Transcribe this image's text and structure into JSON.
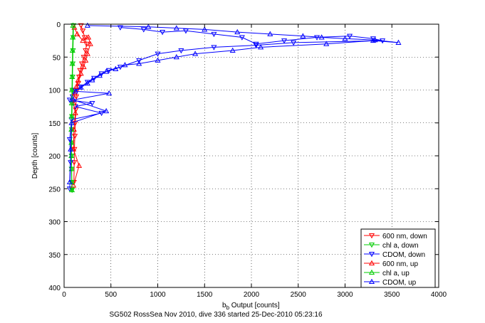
{
  "chart_data": {
    "type": "line",
    "title": "",
    "xlabel_main": "b",
    "xlabel_sub": "b",
    "xlabel_rest": " Output [counts]",
    "ylabel": "Depth [counts]",
    "caption": "SG502 RossSea Nov 2010, dive 336 started 25-Dec-2010 05:23:16",
    "xlim": [
      0,
      4000
    ],
    "ylim": [
      0,
      400
    ],
    "y_reversed": true,
    "grid": true,
    "legend_position": "bottom-right",
    "xticks": [
      0,
      500,
      1000,
      1500,
      2000,
      2500,
      3000,
      3500,
      4000
    ],
    "yticks": [
      0,
      50,
      100,
      150,
      200,
      250,
      300,
      350,
      400
    ],
    "series": [
      {
        "name": "600 nm, down",
        "color": "#ff0000",
        "marker": "triangle-down",
        "x": [
          180,
          200,
          220,
          240,
          230,
          210,
          190,
          170,
          160,
          150,
          140,
          130,
          125,
          120,
          115,
          110,
          108,
          105
        ],
        "y": [
          2,
          10,
          20,
          30,
          40,
          50,
          60,
          70,
          80,
          90,
          100,
          110,
          130,
          150,
          170,
          190,
          210,
          240
        ]
      },
      {
        "name": "chl a, down",
        "color": "#00cc00",
        "marker": "triangle-down",
        "x": [
          100,
          98,
          95,
          92,
          90,
          88,
          86,
          84,
          82,
          80,
          80,
          80,
          82,
          84,
          85
        ],
        "y": [
          2,
          20,
          40,
          60,
          80,
          100,
          120,
          140,
          160,
          180,
          200,
          220,
          240,
          250,
          252
        ]
      },
      {
        "name": "CDOM, down",
        "color": "#0000ff",
        "marker": "triangle-down",
        "x": [
          600,
          850,
          1050,
          1300,
          1600,
          1900,
          2050,
          2350,
          2700,
          3050,
          3300,
          3400,
          2450,
          2050,
          1600,
          1250,
          1000,
          800,
          600,
          480,
          400,
          320,
          250,
          180,
          120,
          90,
          60,
          300,
          120,
          400,
          80,
          60,
          70,
          60
        ],
        "y": [
          5,
          8,
          12,
          10,
          15,
          20,
          30,
          25,
          20,
          18,
          22,
          25,
          28,
          32,
          35,
          40,
          45,
          55,
          65,
          70,
          75,
          82,
          88,
          95,
          100,
          110,
          115,
          120,
          125,
          135,
          145,
          175,
          210,
          250
        ]
      },
      {
        "name": "600 nm, up",
        "color": "#ff0000",
        "marker": "triangle-up",
        "x": [
          110,
          140,
          200,
          260,
          280,
          250,
          230,
          210,
          180,
          150,
          130,
          110,
          100,
          120,
          105,
          100,
          160,
          100
        ],
        "y": [
          5,
          15,
          25,
          20,
          30,
          45,
          55,
          65,
          75,
          85,
          95,
          105,
          120,
          135,
          160,
          190,
          215,
          245
        ]
      },
      {
        "name": "chl a, up",
        "color": "#00cc00",
        "marker": "triangle-up",
        "x": [
          95,
          93,
          90,
          88,
          86,
          84,
          82,
          80,
          78,
          78,
          78,
          80,
          82,
          84
        ],
        "y": [
          2,
          20,
          40,
          60,
          80,
          100,
          120,
          140,
          160,
          180,
          200,
          220,
          240,
          252
        ]
      },
      {
        "name": "CDOM, up",
        "color": "#0000ff",
        "marker": "triangle-up",
        "x": [
          250,
          900,
          1200,
          1500,
          1850,
          2200,
          2550,
          2750,
          3000,
          3320,
          3570,
          3300,
          2800,
          2100,
          1800,
          1400,
          1200,
          1000,
          800,
          650,
          550,
          450,
          380,
          300,
          250,
          180,
          120,
          480,
          100,
          450,
          80,
          70,
          60
        ],
        "y": [
          2,
          4,
          6,
          8,
          12,
          15,
          18,
          20,
          22,
          24,
          28,
          25,
          30,
          35,
          40,
          45,
          50,
          55,
          60,
          62,
          68,
          72,
          78,
          85,
          90,
          96,
          102,
          105,
          115,
          132,
          150,
          190,
          240
        ]
      }
    ]
  }
}
